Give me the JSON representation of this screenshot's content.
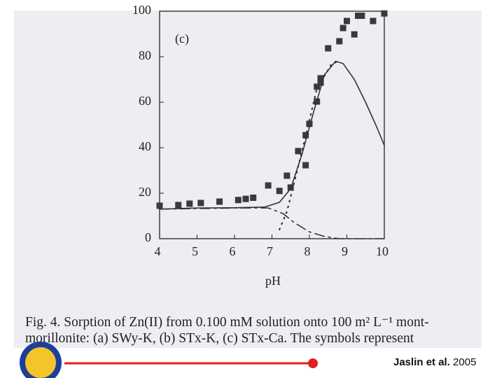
{
  "chart_data": {
    "type": "scatter",
    "annotation": "(c)",
    "x_label": "pH",
    "xlim": [
      4,
      10
    ],
    "xticks": [
      4,
      5,
      6,
      7,
      8,
      9,
      10
    ],
    "ylim": [
      0,
      100
    ],
    "yticks": [
      0,
      20,
      40,
      60,
      80,
      100
    ],
    "series": [
      {
        "style": "markers",
        "color": "#3a3a3a",
        "x": [
          4.0,
          4.5,
          4.8,
          5.1,
          5.6,
          6.1,
          6.3,
          6.5,
          6.9,
          7.2,
          7.4,
          7.5,
          7.7,
          7.9,
          7.9,
          8.0,
          8.2,
          8.2,
          8.3,
          8.3,
          8.5,
          8.8,
          8.9,
          9.0,
          9.2,
          9.3,
          9.4,
          9.7,
          10.0
        ],
        "values": [
          14.5,
          14.8,
          15.4,
          15.7,
          16.3,
          17,
          17.5,
          18,
          23.4,
          21,
          27.7,
          22.5,
          38.5,
          32.3,
          45.5,
          50.5,
          60.3,
          66.8,
          70.5,
          68.6,
          83.7,
          86.8,
          92.6,
          95.7,
          89.8,
          98,
          98,
          95.7,
          99
        ]
      },
      {
        "style": "solid",
        "color": "#333333",
        "x": [
          4,
          5,
          6,
          6.8,
          7.2,
          7.5,
          7.8,
          8.1,
          8.4,
          8.7,
          8.9,
          9.2,
          9.5,
          9.8,
          10
        ],
        "values": [
          13,
          13.5,
          13.6,
          13.9,
          16,
          22,
          37,
          55,
          72,
          78,
          77,
          70,
          60,
          49,
          41
        ]
      },
      {
        "style": "dashed",
        "color": "#333333",
        "x": [
          4,
          6,
          6.9,
          7.3,
          7.6,
          8,
          8.4,
          8.8,
          10
        ],
        "values": [
          13,
          13.5,
          13.5,
          11,
          7,
          3,
          1,
          0,
          0
        ]
      },
      {
        "style": "dotted",
        "color": "#333333",
        "x": [
          7.2,
          7.4,
          7.6,
          7.9,
          8.2,
          8.6,
          8.8
        ],
        "values": [
          4,
          12,
          25,
          45,
          66,
          77,
          78
        ]
      }
    ]
  },
  "caption": {
    "line1": "Fig. 4.  Sorption of Zn(II) from 0.100 mM solution onto 100 m² L⁻¹ mont-",
    "line2": "morillonite: (a) SWy-K, (b) STx-K, (c) STx-Ca. The symbols represent"
  },
  "citation": {
    "authors": "Jaslin et al.",
    "year": "2005"
  }
}
